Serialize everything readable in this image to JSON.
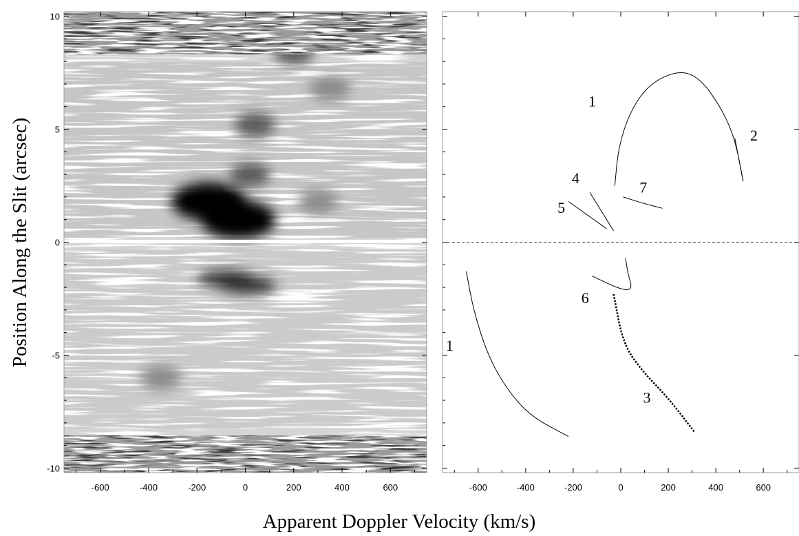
{
  "chart_data": {
    "type": "line",
    "xlabel": "Apparent Doppler Velocity (km/s)",
    "ylabel": "Position Along the Slit (arcsec)",
    "xlim": [
      -750,
      750
    ],
    "ylim": [
      -10.2,
      10.2
    ],
    "x_ticks": [
      -600,
      -400,
      -200,
      0,
      200,
      400,
      600
    ],
    "y_ticks": [
      10,
      5,
      0,
      -5,
      -10
    ],
    "left_panel": {
      "kind": "grayscale position-velocity diagram",
      "blobs": [
        {
          "x": -150,
          "y": 1.8,
          "level": 5
        },
        {
          "x": -30,
          "y": 1.0,
          "level": 5
        },
        {
          "x": -80,
          "y": -1.6,
          "level": 4
        },
        {
          "x": 10,
          "y": -1.9,
          "level": 4
        },
        {
          "x": 20,
          "y": 3.0,
          "level": 3
        },
        {
          "x": 40,
          "y": 5.2,
          "level": 3
        },
        {
          "x": 200,
          "y": 8.4,
          "level": 3
        },
        {
          "x": 350,
          "y": 6.8,
          "level": 2
        },
        {
          "x": -350,
          "y": -6.0,
          "level": 2
        },
        {
          "x": 300,
          "y": 1.8,
          "level": 2
        }
      ]
    },
    "right_panel": {
      "reference_line_y": 0,
      "curves": [
        {
          "label": "1",
          "style": "solid",
          "points": [
            [
              -25,
              2.5
            ],
            [
              -10,
              4.2
            ],
            [
              40,
              5.8
            ],
            [
              120,
              7.0
            ],
            [
              240,
              7.6
            ],
            [
              330,
              7.3
            ],
            [
              420,
              6.0
            ],
            [
              480,
              4.6
            ],
            [
              515,
              2.7
            ]
          ],
          "label_pos": [
            -120,
            6.0
          ]
        },
        {
          "label": "2",
          "style": "solid",
          "points": [
            [
              515,
              2.7
            ],
            [
              480,
              4.6
            ]
          ],
          "label_pos": [
            560,
            4.5
          ]
        },
        {
          "label": "1",
          "style": "solid",
          "points": [
            [
              -650,
              -1.3
            ],
            [
              -620,
              -3.0
            ],
            [
              -560,
              -5.0
            ],
            [
              -480,
              -6.5
            ],
            [
              -380,
              -7.7
            ],
            [
              -220,
              -8.6
            ]
          ],
          "label_pos": [
            -720,
            -4.8
          ]
        },
        {
          "label": "3",
          "style": "dotted",
          "points": [
            [
              -30,
              -2.3
            ],
            [
              10,
              -4.5
            ],
            [
              90,
              -5.7
            ],
            [
              200,
              -6.9
            ],
            [
              310,
              -8.4
            ]
          ],
          "label_pos": [
            110,
            -7.1
          ]
        },
        {
          "label": "4",
          "style": "solid",
          "points": [
            [
              -130,
              2.2
            ],
            [
              -30,
              0.5
            ]
          ],
          "label_pos": [
            -190,
            2.6
          ]
        },
        {
          "label": "5",
          "style": "solid",
          "points": [
            [
              -220,
              1.8
            ],
            [
              -60,
              0.6
            ]
          ],
          "label_pos": [
            -250,
            1.3
          ]
        },
        {
          "label": "6",
          "style": "solid",
          "points": [
            [
              -120,
              -1.5
            ],
            [
              0,
              -2.1
            ],
            [
              50,
              -2.1
            ],
            [
              30,
              -1.4
            ],
            [
              20,
              -0.7
            ]
          ],
          "label_pos": [
            -150,
            -2.7
          ]
        },
        {
          "label": "7",
          "style": "solid",
          "points": [
            [
              10,
              2.0
            ],
            [
              100,
              1.7
            ],
            [
              175,
              1.5
            ]
          ],
          "label_pos": [
            95,
            2.2
          ]
        }
      ]
    }
  }
}
